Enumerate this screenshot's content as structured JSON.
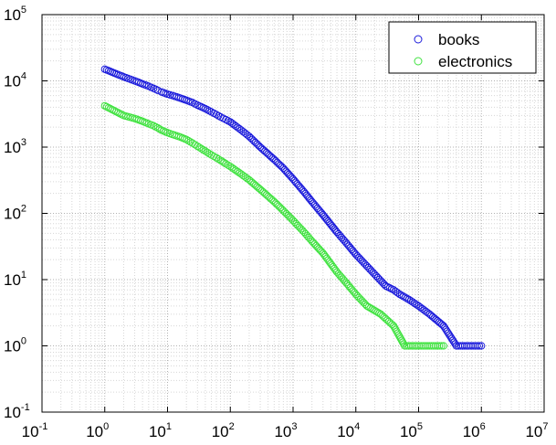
{
  "chart_data": {
    "type": "scatter",
    "title": "",
    "xlabel": "",
    "ylabel": "",
    "xscale": "log",
    "yscale": "log",
    "xlim": [
      0.1,
      10000000
    ],
    "ylim": [
      0.1,
      100000
    ],
    "x_ticks": [
      {
        "base": "10",
        "exp": "-1"
      },
      {
        "base": "10",
        "exp": "0"
      },
      {
        "base": "10",
        "exp": "1"
      },
      {
        "base": "10",
        "exp": "2"
      },
      {
        "base": "10",
        "exp": "3"
      },
      {
        "base": "10",
        "exp": "4"
      },
      {
        "base": "10",
        "exp": "5"
      },
      {
        "base": "10",
        "exp": "6"
      },
      {
        "base": "10",
        "exp": "7"
      }
    ],
    "y_ticks": [
      {
        "base": "10",
        "exp": "-1"
      },
      {
        "base": "10",
        "exp": "0"
      },
      {
        "base": "10",
        "exp": "1"
      },
      {
        "base": "10",
        "exp": "2"
      },
      {
        "base": "10",
        "exp": "3"
      },
      {
        "base": "10",
        "exp": "4"
      },
      {
        "base": "10",
        "exp": "5"
      }
    ],
    "grid": true,
    "legend": "top-right",
    "marker": "open-circle",
    "series": [
      {
        "name": "books",
        "color": "#1a1adb",
        "points": [
          [
            1,
            15000
          ],
          [
            2,
            11500
          ],
          [
            3,
            10000
          ],
          [
            4,
            9000
          ],
          [
            5,
            8300
          ],
          [
            6,
            7700
          ],
          [
            7,
            7200
          ],
          [
            8,
            6800
          ],
          [
            10,
            6300
          ],
          [
            12,
            6000
          ],
          [
            15,
            5600
          ],
          [
            20,
            5100
          ],
          [
            25,
            4700
          ],
          [
            30,
            4300
          ],
          [
            40,
            3800
          ],
          [
            50,
            3400
          ],
          [
            60,
            3100
          ],
          [
            70,
            2850
          ],
          [
            85,
            2600
          ],
          [
            100,
            2400
          ],
          [
            150,
            1800
          ],
          [
            200,
            1450
          ],
          [
            300,
            1000
          ],
          [
            500,
            650
          ],
          [
            700,
            480
          ],
          [
            1000,
            330
          ],
          [
            1500,
            210
          ],
          [
            2000,
            150
          ],
          [
            3000,
            95
          ],
          [
            5000,
            52
          ],
          [
            7000,
            36
          ],
          [
            10000,
            24
          ],
          [
            15000,
            16
          ],
          [
            20000,
            12
          ],
          [
            30000,
            8
          ],
          [
            40000,
            7
          ],
          [
            50000,
            6
          ],
          [
            70000,
            5
          ],
          [
            100000,
            4
          ],
          [
            150000,
            3
          ],
          [
            250000,
            2
          ],
          [
            400000,
            1
          ],
          [
            1000000,
            1
          ]
        ]
      },
      {
        "name": "electronics",
        "color": "#3fe23f",
        "points": [
          [
            1,
            4200
          ],
          [
            2,
            3000
          ],
          [
            3,
            2700
          ],
          [
            4,
            2450
          ],
          [
            5,
            2250
          ],
          [
            6,
            2100
          ],
          [
            7,
            1950
          ],
          [
            8,
            1800
          ],
          [
            10,
            1650
          ],
          [
            12,
            1550
          ],
          [
            15,
            1450
          ],
          [
            20,
            1300
          ],
          [
            25,
            1150
          ],
          [
            30,
            1030
          ],
          [
            40,
            870
          ],
          [
            50,
            760
          ],
          [
            60,
            690
          ],
          [
            70,
            630
          ],
          [
            85,
            560
          ],
          [
            100,
            510
          ],
          [
            150,
            390
          ],
          [
            200,
            320
          ],
          [
            300,
            230
          ],
          [
            500,
            150
          ],
          [
            700,
            110
          ],
          [
            1000,
            78
          ],
          [
            1500,
            52
          ],
          [
            2000,
            38
          ],
          [
            3000,
            25
          ],
          [
            5000,
            13
          ],
          [
            7000,
            9
          ],
          [
            10000,
            6
          ],
          [
            15000,
            4
          ],
          [
            25000,
            3
          ],
          [
            40000,
            2
          ],
          [
            60000,
            1
          ],
          [
            250000,
            1
          ]
        ]
      }
    ]
  }
}
